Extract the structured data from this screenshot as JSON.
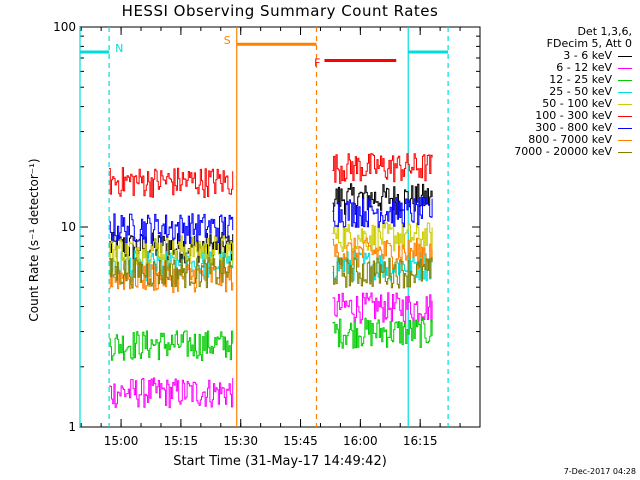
{
  "chart_data": {
    "type": "line",
    "title": "HESSI Observing Summary Count Rates",
    "xlabel": "Start Time (31-May-17 14:49:42)",
    "ylabel": "Count Rate (s⁻¹ detector⁻¹)",
    "y_scale": "log",
    "ylim": [
      1,
      100
    ],
    "xlim": [
      "14:49:42",
      "16:30:00"
    ],
    "y_ticks": [
      "1",
      "10",
      "100"
    ],
    "x_ticks": [
      "15:00",
      "15:15",
      "15:30",
      "15:45",
      "16:00",
      "16:15"
    ],
    "legend_header": [
      "Det 1,3,6,",
      "FDecim 5, Att 0"
    ],
    "legend_placement": "right, outside plot",
    "series": [
      {
        "name": "3 - 6 keV",
        "color": "#000000",
        "segments": [
          {
            "start": "14:57",
            "end": "15:28",
            "level": 8.0
          },
          {
            "start": "15:53",
            "end": "16:18",
            "level": 14.0
          }
        ]
      },
      {
        "name": "6 - 12 keV",
        "color": "#ff00ff",
        "segments": [
          {
            "start": "14:57",
            "end": "15:28",
            "level": 1.5
          },
          {
            "start": "15:53",
            "end": "16:18",
            "level": 4.0
          }
        ]
      },
      {
        "name": "12 - 25 keV",
        "color": "#00cc00",
        "segments": [
          {
            "start": "14:57",
            "end": "15:28",
            "level": 2.6
          },
          {
            "start": "15:53",
            "end": "16:18",
            "level": 3.0
          }
        ]
      },
      {
        "name": "25 - 50 keV",
        "color": "#00dddd",
        "segments": [
          {
            "start": "14:57",
            "end": "15:28",
            "level": 6.5
          },
          {
            "start": "15:53",
            "end": "16:18",
            "level": 6.5
          }
        ]
      },
      {
        "name": "50 - 100 keV",
        "color": "#cccc00",
        "segments": [
          {
            "start": "14:57",
            "end": "15:28",
            "level": 7.8
          },
          {
            "start": "15:53",
            "end": "16:18",
            "level": 9.0
          }
        ]
      },
      {
        "name": "100 - 300 keV",
        "color": "#ff0000",
        "segments": [
          {
            "start": "14:57",
            "end": "15:28",
            "level": 17.0
          },
          {
            "start": "15:53",
            "end": "16:18",
            "level": 20.0
          }
        ]
      },
      {
        "name": "300 - 800 keV",
        "color": "#0000ff",
        "segments": [
          {
            "start": "14:57",
            "end": "15:28",
            "level": 10.0
          },
          {
            "start": "15:53",
            "end": "16:18",
            "level": 12.0
          }
        ]
      },
      {
        "name": "800 - 7000 keV",
        "color": "#ff8000",
        "segments": [
          {
            "start": "14:57",
            "end": "15:28",
            "level": 5.7
          },
          {
            "start": "15:53",
            "end": "16:18",
            "level": 7.5
          }
        ]
      },
      {
        "name": "7000 - 20000 keV",
        "color": "#808000",
        "segments": [
          {
            "start": "14:57",
            "end": "15:28",
            "level": 6.0
          },
          {
            "start": "15:53",
            "end": "16:18",
            "level": 6.0
          }
        ]
      }
    ],
    "annotations": [
      {
        "label": "N",
        "color": "#00dddd",
        "start": "14:49:42",
        "end": "14:57",
        "level": 75,
        "type": "night"
      },
      {
        "label": "",
        "color": "#00dddd",
        "start": "16:12",
        "end": "16:22",
        "level": 75,
        "type": "night"
      },
      {
        "label": "S",
        "color": "#ff8000",
        "start": "15:29",
        "end": "15:49",
        "level": 82,
        "type": "saa"
      },
      {
        "label": "F",
        "color": "#ff0000",
        "start": "15:51",
        "end": "16:09",
        "level": 68,
        "type": "flare"
      }
    ],
    "vertical_markers": [
      {
        "time": "14:49:42",
        "color": "#00dddd",
        "style": "solid"
      },
      {
        "time": "14:57",
        "color": "#00dddd",
        "style": "dashed"
      },
      {
        "time": "15:29",
        "color": "#ff8000",
        "style": "solid"
      },
      {
        "time": "15:49",
        "color": "#ff8000",
        "style": "dashed"
      },
      {
        "time": "16:12",
        "color": "#00dddd",
        "style": "solid"
      },
      {
        "time": "16:22",
        "color": "#00dddd",
        "style": "dashed"
      }
    ]
  },
  "footer": "7-Dec-2017 04:28"
}
